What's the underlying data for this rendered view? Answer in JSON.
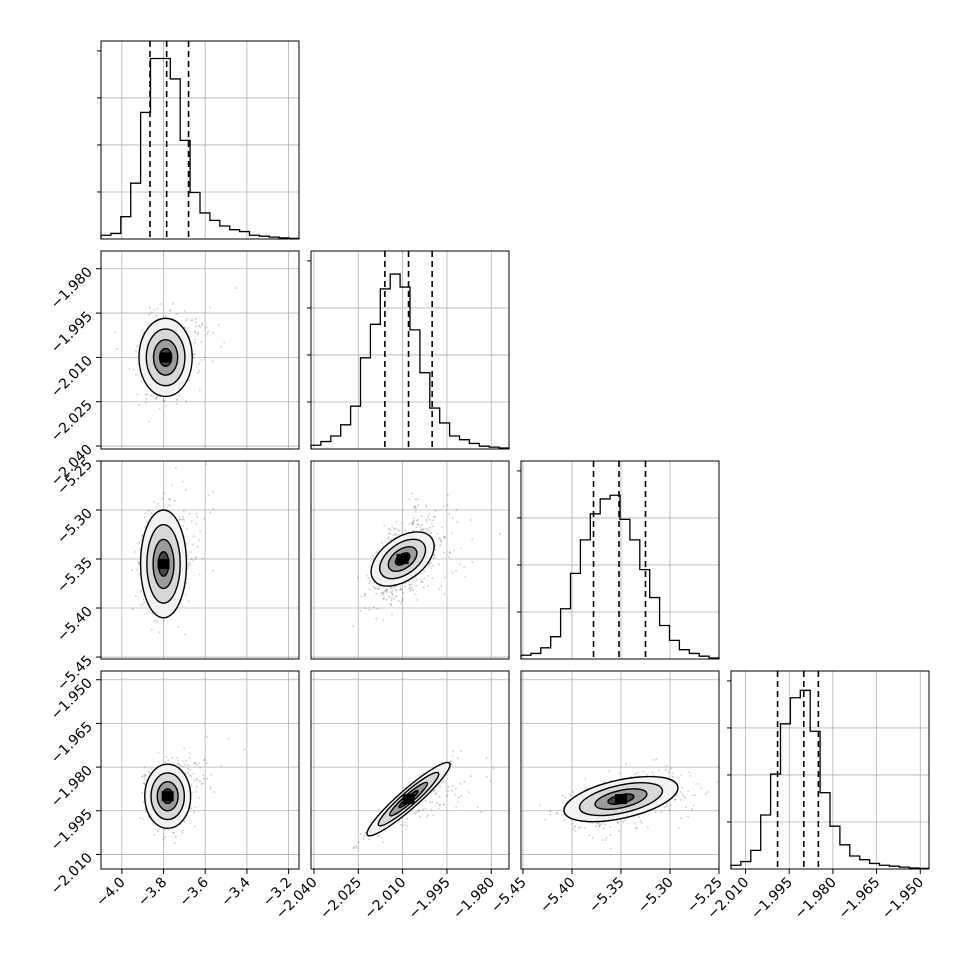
{
  "chart_data": {
    "type": "corner",
    "params": 4,
    "axes": [
      {
        "range": [
          -4.1,
          -3.15
        ],
        "ticks": [
          -4.0,
          -3.8,
          -3.6,
          -3.4,
          -3.2
        ],
        "tick_labels": [
          "−4.0",
          "−3.8",
          "−3.6",
          "−3.4",
          "−3.2"
        ]
      },
      {
        "range": [
          -2.041,
          -1.974
        ],
        "ticks": [
          -2.04,
          -2.025,
          -2.01,
          -1.995,
          -1.98
        ],
        "tick_labels": [
          "−2.040",
          "−2.025",
          "−2.010",
          "−1.995",
          "−1.980"
        ]
      },
      {
        "range": [
          -5.452,
          -5.25
        ],
        "ticks": [
          -5.45,
          -5.4,
          -5.35,
          -5.3,
          -5.25
        ],
        "tick_labels": [
          "−5.45",
          "−5.40",
          "−5.35",
          "−5.30",
          "−5.25"
        ]
      },
      {
        "range": [
          -2.015,
          -1.947
        ],
        "ticks": [
          -2.01,
          -1.995,
          -1.98,
          -1.965,
          -1.95
        ],
        "tick_labels": [
          "−2.010",
          "−1.995",
          "−1.980",
          "−1.965",
          "−1.950"
        ]
      }
    ],
    "histograms": [
      {
        "edges_count": 20,
        "counts": [
          2,
          3,
          12,
          30,
          68,
          97,
          97,
          86,
          53,
          25,
          14,
          10,
          7,
          5,
          4,
          2,
          1.5,
          1,
          0.6,
          0.3
        ],
        "ymax": 100,
        "quantiles": [
          -3.865,
          -3.785,
          -3.68
        ]
      },
      {
        "edges_count": 20,
        "counts": [
          2,
          4,
          7,
          13,
          23,
          49,
          67,
          86,
          94,
          87,
          64,
          41,
          22,
          14,
          7,
          5,
          3,
          1.5,
          1,
          0.5
        ],
        "ymax": 100,
        "quantiles": [
          -2.016,
          -2.008,
          -2.0
        ]
      },
      {
        "edges_count": 20,
        "counts": [
          2,
          3,
          6,
          12,
          27,
          46,
          64,
          78,
          86,
          88,
          75,
          64,
          48,
          33,
          18,
          10,
          5,
          3,
          1.5,
          0.5
        ],
        "ymax": 100,
        "quantiles": [
          -5.378,
          -5.352,
          -5.325
        ]
      },
      {
        "edges_count": 20,
        "counts": [
          2,
          4,
          10,
          29,
          51,
          78,
          92,
          96,
          74,
          41,
          23,
          13,
          7,
          5,
          3,
          2,
          1.5,
          1,
          0.5,
          0.3
        ],
        "ymax": 100,
        "quantiles": [
          -1.999,
          -1.99,
          -1.985
        ]
      }
    ],
    "pairs": [
      {
        "row": 1,
        "col": 0,
        "center": [
          -3.79,
          -2.01
        ],
        "sigma": [
          0.058,
          0.006
        ],
        "rho": 0.0,
        "label": "x1-vs-x0"
      },
      {
        "row": 2,
        "col": 0,
        "center": [
          -3.8,
          -5.355
        ],
        "sigma": [
          0.05,
          0.025
        ],
        "rho": 0.0,
        "label": "x2-vs-x0"
      },
      {
        "row": 2,
        "col": 1,
        "center": [
          -2.01,
          -5.35
        ],
        "sigma": [
          0.0055,
          0.022
        ],
        "rho": 0.55,
        "label": "x2-vs-x1"
      },
      {
        "row": 3,
        "col": 0,
        "center": [
          -3.78,
          -1.99
        ],
        "sigma": [
          0.05,
          0.005
        ],
        "rho": 0.0,
        "label": "x3-vs-x0"
      },
      {
        "row": 3,
        "col": 1,
        "center": [
          -2.008,
          -1.991
        ],
        "sigma": [
          0.006,
          0.0055
        ],
        "rho": 0.97,
        "label": "x3-vs-x1"
      },
      {
        "row": 3,
        "col": 2,
        "center": [
          -5.35,
          -1.991
        ],
        "sigma": [
          0.027,
          0.0045
        ],
        "rho": 0.45,
        "label": "x3-vs-x2"
      }
    ],
    "grid": true
  }
}
